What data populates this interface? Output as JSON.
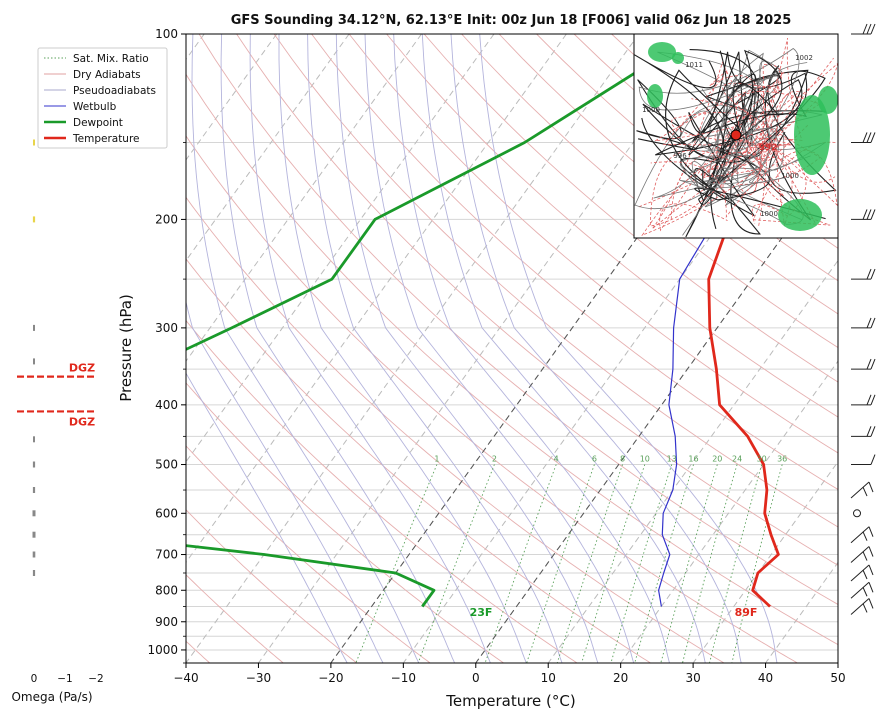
{
  "chart_data": {
    "type": "line",
    "title": "GFS Sounding 34.12°N, 62.13°E Init: 00z Jun 18 [F006] valid 06z Jun 18 2025",
    "xlabel": "Temperature (°C)",
    "ylabel": "Pressure (hPa)",
    "xlim": [
      -40,
      50
    ],
    "ylim": [
      1050,
      100
    ],
    "y_scale": "log",
    "skew": true,
    "grid": true,
    "legend_position": "top-left",
    "x_ticks": [
      "−40",
      "−30",
      "−20",
      "−10",
      "0",
      "10",
      "20",
      "30",
      "40",
      "50"
    ],
    "y_ticks": [
      "100",
      "200",
      "300",
      "400",
      "500",
      "600",
      "700",
      "800",
      "900",
      "1000"
    ],
    "legend": [
      {
        "label": "Sat. Mix. Ratio",
        "color": "#5aa05a",
        "style": "dotted"
      },
      {
        "label": "Dry Adiabats",
        "color": "#e0a0a0",
        "style": "solid"
      },
      {
        "label": "Pseudoadiabats",
        "color": "#aaaacc",
        "style": "solid"
      },
      {
        "label": "Wetbulb",
        "color": "#3333cc",
        "style": "solid"
      },
      {
        "label": "Dewpoint",
        "color": "#1a9a2a",
        "style": "thick"
      },
      {
        "label": "Temperature",
        "color": "#e0281c",
        "style": "thick"
      }
    ],
    "mixing_ratio_labels": [
      "1",
      "2",
      "4",
      "6",
      "8",
      "10",
      "13",
      "16",
      "20",
      "24",
      "30",
      "36"
    ],
    "series": [
      {
        "name": "Temperature",
        "color": "#e0281c",
        "points": [
          [
            100,
            -13
          ],
          [
            150,
            -9
          ],
          [
            200,
            -9
          ],
          [
            250,
            -6
          ],
          [
            300,
            -1
          ],
          [
            350,
            4
          ],
          [
            400,
            8
          ],
          [
            450,
            15
          ],
          [
            500,
            20
          ],
          [
            550,
            23
          ],
          [
            600,
            25
          ],
          [
            650,
            28
          ],
          [
            700,
            31
          ],
          [
            750,
            30
          ],
          [
            800,
            31
          ],
          [
            850,
            35
          ]
        ]
      },
      {
        "name": "Dewpoint",
        "color": "#1a9a2a",
        "points": [
          [
            100,
            -32
          ],
          [
            150,
            -45
          ],
          [
            200,
            -58
          ],
          [
            250,
            -58
          ],
          [
            300,
            -67
          ],
          [
            350,
            -75
          ],
          [
            400,
            -70
          ],
          [
            450,
            -77
          ],
          [
            500,
            -79
          ],
          [
            550,
            -80
          ],
          [
            600,
            -82
          ],
          [
            650,
            -66
          ],
          [
            700,
            -40
          ],
          [
            750,
            -20
          ],
          [
            800,
            -13
          ],
          [
            850,
            -13
          ]
        ]
      },
      {
        "name": "Wetbulb",
        "color": "#3333cc",
        "points": [
          [
            150,
            -9
          ],
          [
            200,
            -11
          ],
          [
            250,
            -10
          ],
          [
            300,
            -6
          ],
          [
            350,
            -2
          ],
          [
            400,
            1
          ],
          [
            450,
            5
          ],
          [
            500,
            8
          ],
          [
            550,
            10
          ],
          [
            600,
            11
          ],
          [
            650,
            13
          ],
          [
            700,
            16
          ],
          [
            750,
            17
          ],
          [
            800,
            18
          ],
          [
            850,
            20
          ]
        ]
      }
    ],
    "surface_labels": {
      "dewpoint": "23F",
      "temperature": "89F"
    },
    "omega": {
      "label": "Omega (Pa/s)",
      "x_ticks": [
        "0",
        "−1",
        "−2"
      ],
      "dgz_label": "DGZ",
      "dgz_bounds_hpa": [
        360,
        410
      ],
      "bars": [
        {
          "p": 150,
          "omega": 0.05,
          "color": "#e8d44a"
        },
        {
          "p": 200,
          "omega": 0.06,
          "color": "#e8d44a"
        },
        {
          "p": 300,
          "omega": -0.04,
          "color": "#888888"
        },
        {
          "p": 340,
          "omega": -0.01,
          "color": "#888888"
        },
        {
          "p": 455,
          "omega": 0.0,
          "color": "#888888"
        },
        {
          "p": 500,
          "omega": -0.06,
          "color": "#888888"
        },
        {
          "p": 550,
          "omega": -0.06,
          "color": "#888888"
        },
        {
          "p": 600,
          "omega": -0.08,
          "color": "#888888"
        },
        {
          "p": 650,
          "omega": -0.08,
          "color": "#888888"
        },
        {
          "p": 700,
          "omega": -0.07,
          "color": "#888888"
        },
        {
          "p": 750,
          "omega": -0.06,
          "color": "#888888"
        }
      ]
    },
    "wind_barbs_hpa": [
      100,
      150,
      200,
      250,
      300,
      350,
      400,
      450,
      500,
      550,
      600,
      650,
      700,
      750,
      800,
      850
    ],
    "inset_map": {
      "labels": [
        "1011",
        "1002",
        "1000",
        "996",
        "992",
        "1000",
        "1008",
        "1000"
      ]
    }
  }
}
